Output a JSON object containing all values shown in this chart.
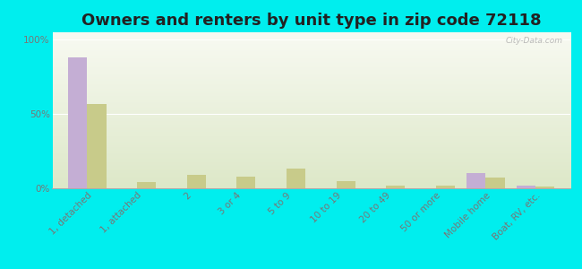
{
  "title": "Owners and renters by unit type in zip code 72118",
  "categories": [
    "1, detached",
    "1, attached",
    "2",
    "3 or 4",
    "5 to 9",
    "10 to 19",
    "20 to 49",
    "50 or more",
    "Mobile home",
    "Boat, RV, etc."
  ],
  "owner_values": [
    88,
    0,
    0,
    0,
    0,
    0,
    0,
    0,
    10,
    2
  ],
  "renter_values": [
    57,
    4,
    9,
    8,
    13,
    5,
    2,
    2,
    7,
    1
  ],
  "owner_color": "#c4aed4",
  "renter_color": "#c8cb8a",
  "background_color": "#00eeee",
  "plot_bg_colors": [
    "#f8faf2",
    "#dde8c8"
  ],
  "ylabel_ticks": [
    "0%",
    "50%",
    "100%"
  ],
  "ytick_vals": [
    0,
    50,
    100
  ],
  "ylim": [
    0,
    105
  ],
  "bar_width": 0.38,
  "title_fontsize": 13,
  "tick_fontsize": 7.5,
  "legend_fontsize": 9,
  "watermark": "City-Data.com",
  "grid_color": "#ffffff",
  "spine_color": "#aaaaaa",
  "tick_color": "#777777"
}
